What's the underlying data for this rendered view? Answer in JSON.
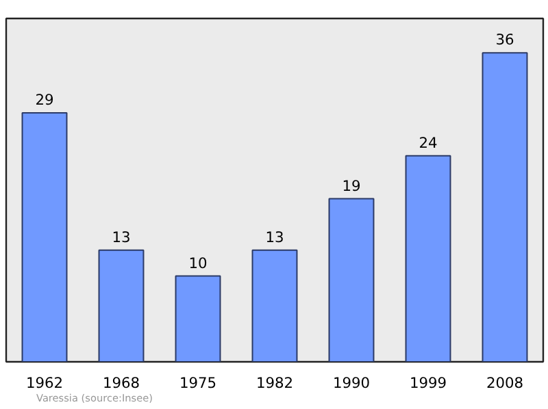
{
  "chart_data": {
    "type": "bar",
    "categories": [
      "1962",
      "1968",
      "1975",
      "1982",
      "1990",
      "1999",
      "2008"
    ],
    "values": [
      29,
      13,
      10,
      13,
      19,
      24,
      36
    ],
    "color": "#7099ff",
    "ylim": [
      0,
      40
    ],
    "data_labels": true,
    "grid": false,
    "annotations": [
      "Varessia    (source:Insee)"
    ]
  }
}
